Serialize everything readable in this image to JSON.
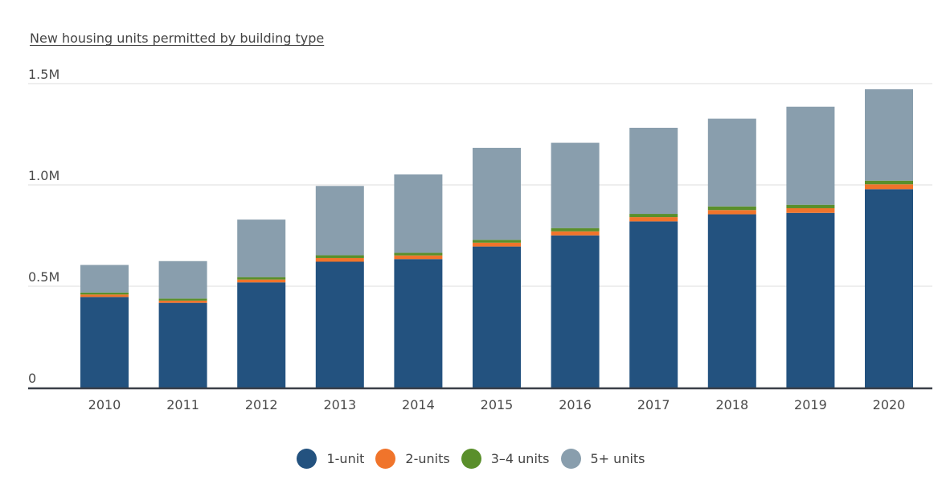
{
  "chart_data": {
    "type": "bar",
    "stacked": true,
    "title": "New housing units permitted by building type",
    "categories": [
      "2010",
      "2011",
      "2012",
      "2013",
      "2014",
      "2015",
      "2016",
      "2017",
      "2018",
      "2019",
      "2020"
    ],
    "series": [
      {
        "name": "1-unit",
        "color": "#23527f",
        "values": [
          447000,
          418000,
          519000,
          621000,
          634000,
          696000,
          751000,
          820000,
          855000,
          862000,
          979000
        ]
      },
      {
        "name": "2-units",
        "color": "#f0742b",
        "values": [
          12000,
          11000,
          14000,
          18000,
          18000,
          19000,
          20000,
          21000,
          21000,
          23000,
          24000
        ]
      },
      {
        "name": "3–4 units",
        "color": "#5a8f2b",
        "values": [
          10000,
          10000,
          12000,
          14000,
          13000,
          14000,
          16000,
          16000,
          18000,
          17000,
          18000
        ]
      },
      {
        "name": "5+ units",
        "color": "#899ead",
        "values": [
          136000,
          185000,
          284000,
          342000,
          387000,
          454000,
          421000,
          425000,
          433000,
          484000,
          451000
        ]
      }
    ],
    "ylim": [
      0,
      1500000
    ],
    "yticks": [
      0,
      500000,
      1000000,
      1500000
    ],
    "ytick_labels": [
      "0",
      "0.5M",
      "1.0M",
      "1.5M"
    ],
    "grid": true,
    "legend_position": "bottom"
  }
}
